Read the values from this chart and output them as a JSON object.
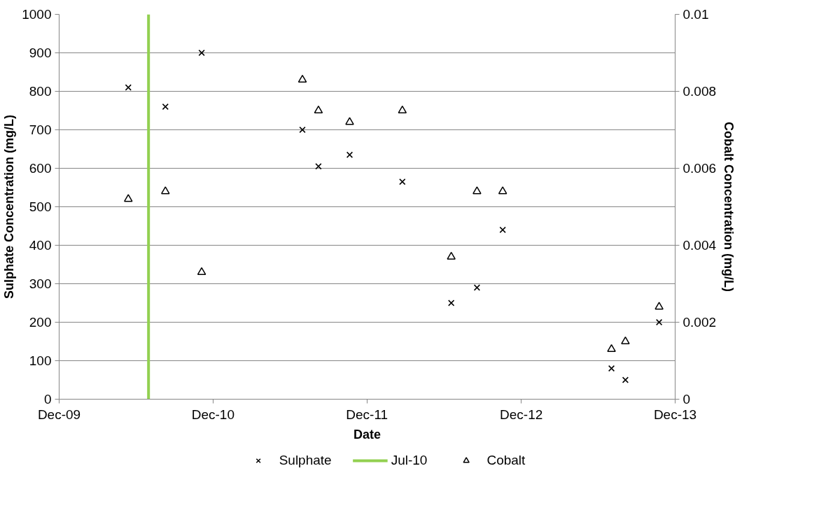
{
  "chart_data": {
    "type": "scatter",
    "xlabel": "Date",
    "ylabel": "Sulphate Concentration (mg/L)",
    "y2label": "Cobalt Concentration (mg/L)",
    "x": [
      "2010-05-14",
      "2010-08-10",
      "2010-11-04",
      "2011-07-01",
      "2011-08-08",
      "2011-10-21",
      "2012-02-23",
      "2012-06-18",
      "2012-08-18",
      "2012-10-18",
      "2013-07-03",
      "2013-08-05",
      "2013-10-24"
    ],
    "series": [
      {
        "name": "Sulphate",
        "color": "#000000",
        "marker": "cross",
        "values": [
          810,
          760,
          900,
          700,
          605,
          635,
          565,
          250,
          290,
          440,
          80,
          50,
          200
        ]
      },
      {
        "name": "Cobalt",
        "color": "#000000",
        "marker": "triangle",
        "axis": "y2",
        "values": [
          0.0052,
          0.0054,
          0.0033,
          0.0083,
          0.0075,
          0.0072,
          0.0075,
          0.0037,
          0.0054,
          0.0054,
          0.0013,
          0.0015,
          0.0024
        ]
      }
    ],
    "ref_lines": [
      {
        "axis": "x",
        "value": "2010-07-01",
        "label": "Jul-10",
        "color": "#92d050"
      }
    ],
    "xlim": [
      "2009-12-01",
      "2013-12-01"
    ],
    "xticks": [
      {
        "value": "2009-12-01",
        "label": "Dec-09"
      },
      {
        "value": "2010-12-01",
        "label": "Dec-10"
      },
      {
        "value": "2011-12-01",
        "label": "Dec-11"
      },
      {
        "value": "2012-12-01",
        "label": "Dec-12"
      },
      {
        "value": "2013-12-01",
        "label": "Dec-13"
      }
    ],
    "ylim": [
      0,
      1000
    ],
    "yticks": [
      0,
      100,
      200,
      300,
      400,
      500,
      600,
      700,
      800,
      900,
      1000
    ],
    "y2lim": [
      0,
      0.01
    ],
    "y2ticks": [
      0,
      0.002,
      0.004,
      0.006,
      0.008,
      0.01
    ],
    "grid": "y",
    "legend": "bottom"
  }
}
